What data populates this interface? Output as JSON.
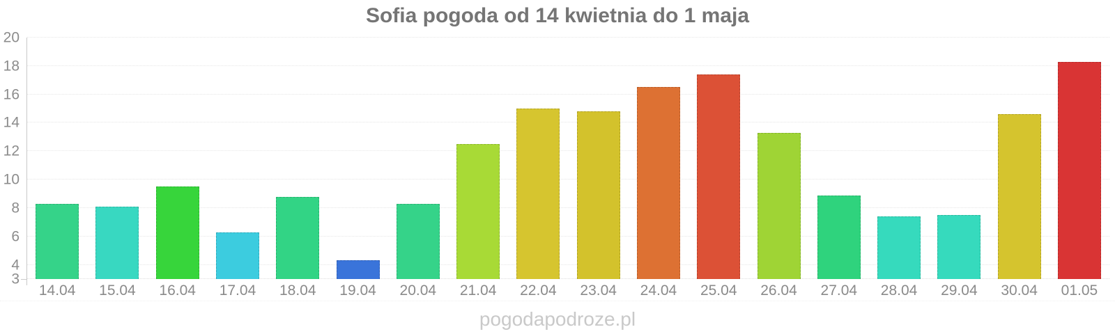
{
  "title": "Sofia pogoda od 14 kwietnia do 1 maja",
  "watermark": "pogodapodroze.pl",
  "chart_data": {
    "type": "bar",
    "title": "Sofia pogoda od 14 kwietnia do 1 maja",
    "categories": [
      "14.04",
      "15.04",
      "16.04",
      "17.04",
      "18.04",
      "19.04",
      "20.04",
      "21.04",
      "22.04",
      "23.04",
      "24.04",
      "25.04",
      "26.04",
      "27.04",
      "28.04",
      "29.04",
      "30.04",
      "01.05"
    ],
    "values": [
      8.3,
      8.1,
      9.5,
      6.3,
      8.8,
      4.3,
      8.3,
      12.5,
      15.0,
      14.8,
      16.5,
      17.4,
      13.3,
      8.9,
      7.4,
      7.5,
      14.6,
      18.3
    ],
    "bar_colors": [
      "#35d389",
      "#38d8c1",
      "#37d53b",
      "#3cccdf",
      "#32d485",
      "#3a74da",
      "#35d389",
      "#a8da36",
      "#d6c52f",
      "#d3c22c",
      "#dd7133",
      "#dc5136",
      "#9fd435",
      "#2fd37d",
      "#36dabd",
      "#36dabd",
      "#d5c42e",
      "#d93434"
    ],
    "xlabel": "",
    "ylabel": "",
    "ylim": [
      3,
      20
    ],
    "yticks": [
      20,
      18,
      16,
      14,
      12,
      10,
      8,
      6,
      4,
      3
    ],
    "grid": "horizontal-dotted",
    "legend": "none",
    "colors": {
      "title": "#757575",
      "axis_line": "#c9c9c9",
      "tick_labels": "#8c8c8c",
      "gridline": "#e6e6e6",
      "watermark": "#c9c9c9",
      "background": "#ffffff"
    }
  }
}
